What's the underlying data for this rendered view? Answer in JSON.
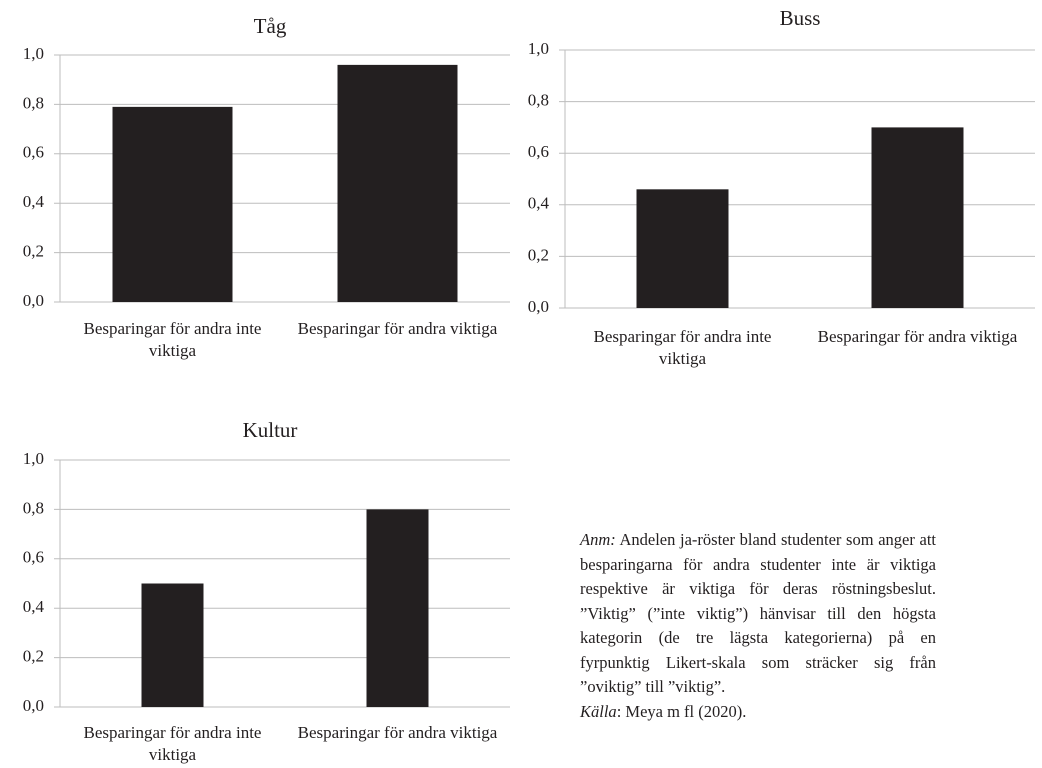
{
  "chart_data": [
    {
      "type": "bar",
      "title": "Tåg",
      "categories": [
        "Besparingar för andra inte viktiga",
        "Besparingar för andra viktiga"
      ],
      "values": [
        0.79,
        0.96
      ],
      "color": "#231f20",
      "ylim": [
        0,
        1
      ],
      "yticks": [
        {
          "value": 0,
          "label": "0,0"
        },
        {
          "value": 0.2,
          "label": "0,2"
        },
        {
          "value": 0.4,
          "label": "0,4"
        },
        {
          "value": 0.6,
          "label": "0,6"
        },
        {
          "value": 0.8,
          "label": "0,8"
        },
        {
          "value": 1,
          "label": "1,0"
        }
      ],
      "grid": true
    },
    {
      "type": "bar",
      "title": "Buss",
      "categories": [
        "Besparingar för andra inte viktiga",
        "Besparingar för andra viktiga"
      ],
      "values": [
        0.46,
        0.7
      ],
      "color": "#231f20",
      "ylim": [
        0,
        1
      ],
      "yticks": [
        {
          "value": 0,
          "label": "0,0"
        },
        {
          "value": 0.2,
          "label": "0,2"
        },
        {
          "value": 0.4,
          "label": "0,4"
        },
        {
          "value": 0.6,
          "label": "0,6"
        },
        {
          "value": 0.8,
          "label": "0,8"
        },
        {
          "value": 1,
          "label": "1,0"
        }
      ],
      "grid": true
    },
    {
      "type": "bar",
      "title": "Kultur",
      "categories": [
        "Besparingar för andra inte viktiga",
        "Besparingar för andra viktiga"
      ],
      "values": [
        0.5,
        0.8
      ],
      "color": "#231f20",
      "ylim": [
        0,
        1
      ],
      "yticks": [
        {
          "value": 0,
          "label": "0,0"
        },
        {
          "value": 0.2,
          "label": "0,2"
        },
        {
          "value": 0.4,
          "label": "0,4"
        },
        {
          "value": 0.6,
          "label": "0,6"
        },
        {
          "value": 0.8,
          "label": "0,8"
        },
        {
          "value": 1,
          "label": "1,0"
        }
      ],
      "grid": true
    }
  ],
  "note": {
    "anm_label": "Anm:",
    "anm_text": "Andelen ja-röster bland studenter som anger att besparingarna för andra studenter inte är viktiga respektive är viktiga för deras röstningsbeslut. ”Viktig” (”inte viktig”) hänvisar till den högsta kategorin (de tre lägsta kategorierna) på en fyrpunktig Likert-skala som sträcker sig från ”oviktig” till ”viktig”.",
    "kalla_label": "Källa",
    "kalla_text": ": Meya m fl (2020)."
  }
}
